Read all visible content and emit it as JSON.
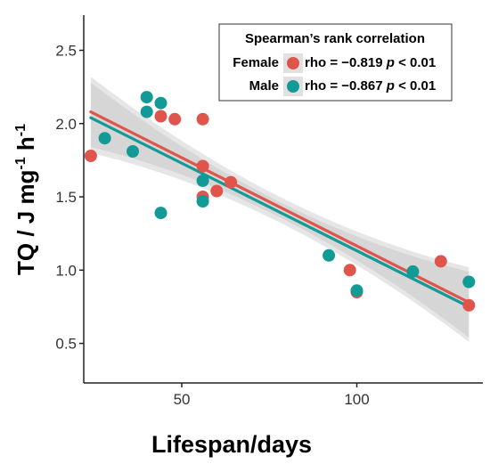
{
  "chart_data": {
    "type": "scatter",
    "xlabel": "Lifespan/days",
    "ylabel_main": "TQ / J mg",
    "ylabel_sup1": "-1",
    "ylabel_mid": " h",
    "ylabel_sup2": "-1",
    "xlim": [
      22,
      136
    ],
    "ylim": [
      0.23,
      2.74
    ],
    "x_ticks": [
      50,
      100
    ],
    "y_ticks": [
      0.5,
      1.0,
      1.5,
      2.0,
      2.5
    ],
    "y_tick_labels": [
      "0.5",
      "1.0",
      "1.5",
      "2.0",
      "2.5"
    ],
    "grid": false,
    "legend": {
      "title": "Spearman’s rank correlation",
      "position": "top-right",
      "entries": [
        {
          "label": "Female",
          "stat": "rho = −0.819",
          "p_italic": "p",
          "p_rest": " < 0.01"
        },
        {
          "label": "Male",
          "stat": "rho = −0.867",
          "p_italic": "p",
          "p_rest": " < 0.01"
        }
      ]
    },
    "series": [
      {
        "name": "Female",
        "color": "#e0554b",
        "x": [
          24,
          44,
          48,
          56,
          56,
          56,
          60,
          64,
          98,
          100,
          124,
          132
        ],
        "y": [
          1.78,
          2.05,
          2.03,
          2.03,
          1.71,
          1.5,
          1.54,
          1.6,
          1.0,
          0.85,
          1.06,
          0.76
        ],
        "fit": {
          "x": [
            24,
            132
          ],
          "y": [
            2.08,
            0.78
          ]
        }
      },
      {
        "name": "Male",
        "color": "#119a96",
        "x": [
          28,
          36,
          40,
          40,
          44,
          44,
          56,
          56,
          92,
          100,
          116,
          132
        ],
        "y": [
          1.9,
          1.81,
          2.18,
          2.08,
          2.14,
          1.39,
          1.61,
          1.47,
          1.1,
          0.86,
          0.99,
          0.92
        ],
        "fit": {
          "x": [
            24,
            132
          ],
          "y": [
            2.04,
            0.75
          ]
        }
      }
    ]
  }
}
